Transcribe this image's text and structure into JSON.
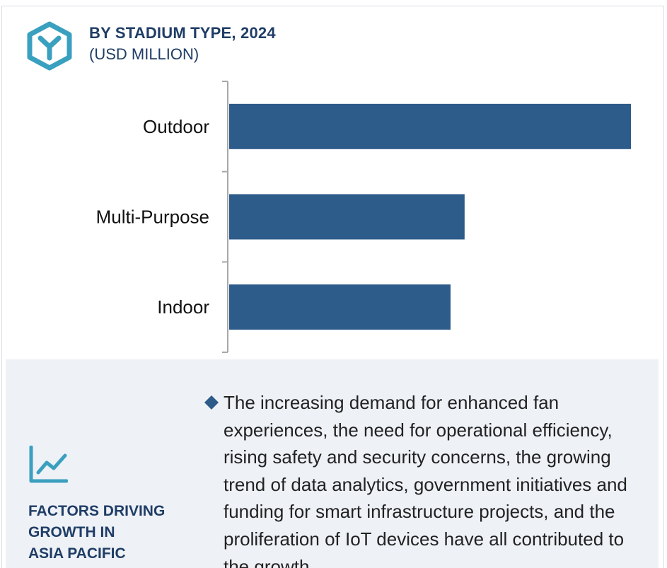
{
  "header": {
    "title": "BY STADIUM TYPE, 2024",
    "subtitle": "(USD MILLION)",
    "logo_icon": "hexagon-y-icon"
  },
  "colors": {
    "bar": "#2d5b8a",
    "accent_teal": "#3aa0bf",
    "title_navy": "#1f3d66",
    "panel_bg": "#eef1f6",
    "axis": "#a8a8a8"
  },
  "chart_data": {
    "type": "bar",
    "orientation": "horizontal",
    "categories": [
      "Outdoor",
      "Multi-Purpose",
      "Indoor"
    ],
    "values": [
      100,
      58.6,
      55.1
    ],
    "title": "BY STADIUM TYPE, 2024",
    "subtitle": "(USD MILLION)",
    "xlabel": "",
    "ylabel": "",
    "xlim": [
      0,
      100
    ],
    "grid": false,
    "legend": "none"
  },
  "factors": {
    "icon": "line-chart-icon",
    "title_lines": [
      "FACTORS DRIVING",
      "GROWTH IN",
      "ASIA PACIFIC"
    ],
    "bullet_icon": "diamond-icon",
    "bullet_text": "The increasing demand for enhanced fan experiences, the need for operational efficiency, rising safety and security concerns, the growing trend of data analytics, government initiatives and funding for smart infrastructure projects, and the proliferation of IoT devices have all contributed to the growth"
  }
}
